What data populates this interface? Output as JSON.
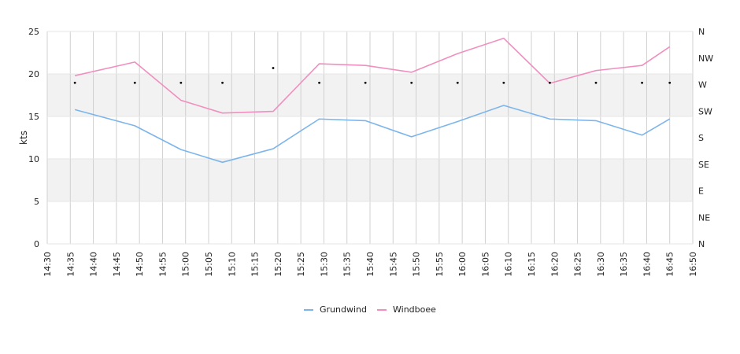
{
  "chart_data": {
    "type": "line",
    "ylabel": "kts",
    "ylim": [
      0,
      25
    ],
    "y_ticks": [
      "0",
      "5",
      "10",
      "15",
      "20",
      "25"
    ],
    "x_tick_labels": [
      "14:30",
      "14:35",
      "14:40",
      "14:45",
      "14:50",
      "14:55",
      "15:00",
      "15:05",
      "15:10",
      "15:15",
      "15:20",
      "15:25",
      "15:30",
      "15:35",
      "15:40",
      "15:45",
      "15:50",
      "15:55",
      "16:00",
      "16:05",
      "16:10",
      "16:15",
      "16:20",
      "16:25",
      "16:30",
      "16:35",
      "16:40",
      "16:45",
      "16:50"
    ],
    "x_range_minutes": [
      870,
      1010
    ],
    "right_axis_labels": [
      "N",
      "NE",
      "E",
      "SE",
      "S",
      "SW",
      "W",
      "NW",
      "N"
    ],
    "right_axis_range_deg": [
      0,
      360
    ],
    "shaded_bands": [
      [
        5,
        10
      ],
      [
        15,
        20
      ]
    ],
    "grid": true,
    "legend_position": "bottom-center",
    "colors": {
      "Grundwind": "#7cb5ec",
      "Windboee": "#f08fbf",
      "direction": "#000000",
      "band": "#f2f2f2",
      "grid": "#d0d0d0"
    },
    "series": [
      {
        "name": "Grundwind",
        "x": [
          "14:36",
          "14:49",
          "14:59",
          "15:08",
          "15:19",
          "15:29",
          "15:39",
          "15:49",
          "15:59",
          "16:09",
          "16:19",
          "16:29",
          "16:39",
          "16:45"
        ],
        "values": [
          15.8,
          13.9,
          11.1,
          9.6,
          11.2,
          14.7,
          14.5,
          12.6,
          14.4,
          16.3,
          14.7,
          14.5,
          12.8,
          14.7
        ]
      },
      {
        "name": "Windboee",
        "x": [
          "14:36",
          "14:49",
          "14:59",
          "15:08",
          "15:19",
          "15:29",
          "15:39",
          "15:49",
          "15:59",
          "16:09",
          "16:19",
          "16:29",
          "16:39",
          "16:45"
        ],
        "values": [
          19.8,
          21.4,
          16.9,
          15.4,
          15.6,
          21.2,
          21.0,
          20.2,
          22.4,
          24.2,
          18.9,
          20.4,
          21.0,
          23.2
        ]
      }
    ],
    "direction": {
      "x": [
        "14:36",
        "14:49",
        "14:59",
        "15:08",
        "15:19",
        "15:29",
        "15:39",
        "15:49",
        "15:59",
        "16:09",
        "16:19",
        "16:29",
        "16:39",
        "16:45"
      ],
      "values_deg": [
        273,
        273,
        273,
        273,
        298,
        273,
        273,
        273,
        273,
        273,
        273,
        273,
        273,
        273
      ]
    }
  }
}
